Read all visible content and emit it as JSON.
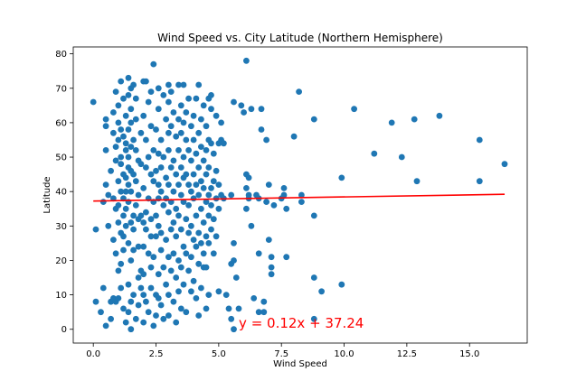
{
  "chart_data": {
    "type": "scatter",
    "title": "Wind Speed vs. City Latitude (Northern Hemisphere)",
    "xlabel": "Wind Speed",
    "ylabel": "Latitude",
    "xlim": [
      -0.8,
      17.3
    ],
    "ylim": [
      -4,
      82
    ],
    "xticks": [
      0.0,
      2.5,
      5.0,
      7.5,
      10.0,
      12.5,
      15.0
    ],
    "xtick_labels": [
      "0.0",
      "2.5",
      "5.0",
      "7.5",
      "10.0",
      "12.5",
      "15.0"
    ],
    "yticks": [
      0,
      10,
      20,
      30,
      40,
      50,
      60,
      70,
      80
    ],
    "ytick_labels": [
      "0",
      "10",
      "20",
      "30",
      "40",
      "50",
      "60",
      "70",
      "80"
    ],
    "grid": false,
    "marker_color": "#1f77b4",
    "regression": {
      "slope": 0.12,
      "intercept": 37.24,
      "x_range": [
        0.0,
        16.4
      ],
      "color": "#ff0000",
      "equation_label": "y = 0.12x + 37.24",
      "label_position": [
        5.8,
        0.5
      ]
    },
    "points": [
      [
        0.0,
        66
      ],
      [
        0.1,
        29
      ],
      [
        0.1,
        8
      ],
      [
        0.3,
        5
      ],
      [
        0.4,
        37
      ],
      [
        0.4,
        12
      ],
      [
        0.5,
        61
      ],
      [
        0.5,
        59
      ],
      [
        0.5,
        52
      ],
      [
        0.5,
        42
      ],
      [
        0.5,
        1
      ],
      [
        0.6,
        39
      ],
      [
        0.6,
        30
      ],
      [
        0.7,
        46
      ],
      [
        0.7,
        8
      ],
      [
        0.7,
        3
      ],
      [
        0.8,
        63
      ],
      [
        0.8,
        57
      ],
      [
        0.8,
        38
      ],
      [
        0.8,
        26
      ],
      [
        0.8,
        9
      ],
      [
        0.9,
        69
      ],
      [
        0.9,
        53
      ],
      [
        0.9,
        49
      ],
      [
        0.9,
        35
      ],
      [
        0.9,
        22
      ],
      [
        0.9,
        8
      ],
      [
        1.0,
        65
      ],
      [
        1.0,
        60
      ],
      [
        1.0,
        55
      ],
      [
        1.0,
        43
      ],
      [
        1.0,
        36
      ],
      [
        1.0,
        31
      ],
      [
        1.0,
        17
      ],
      [
        1.0,
        9
      ],
      [
        1.1,
        72
      ],
      [
        1.1,
        58
      ],
      [
        1.1,
        50
      ],
      [
        1.1,
        48
      ],
      [
        1.1,
        40
      ],
      [
        1.1,
        28
      ],
      [
        1.1,
        19
      ],
      [
        1.1,
        12
      ],
      [
        1.2,
        67
      ],
      [
        1.2,
        56
      ],
      [
        1.2,
        45
      ],
      [
        1.2,
        38
      ],
      [
        1.2,
        33
      ],
      [
        1.2,
        27
      ],
      [
        1.2,
        23
      ],
      [
        1.2,
        6
      ],
      [
        1.3,
        62
      ],
      [
        1.3,
        54
      ],
      [
        1.3,
        52
      ],
      [
        1.3,
        44
      ],
      [
        1.3,
        40
      ],
      [
        1.3,
        35
      ],
      [
        1.3,
        30
      ],
      [
        1.3,
        2
      ],
      [
        1.4,
        73
      ],
      [
        1.4,
        68
      ],
      [
        1.4,
        58
      ],
      [
        1.4,
        50
      ],
      [
        1.4,
        47
      ],
      [
        1.4,
        42
      ],
      [
        1.4,
        37
      ],
      [
        1.4,
        25
      ],
      [
        1.4,
        13
      ],
      [
        1.4,
        5
      ],
      [
        1.5,
        70
      ],
      [
        1.5,
        64
      ],
      [
        1.5,
        60
      ],
      [
        1.5,
        53
      ],
      [
        1.5,
        46
      ],
      [
        1.5,
        40
      ],
      [
        1.5,
        31
      ],
      [
        1.5,
        20
      ],
      [
        1.5,
        8
      ],
      [
        1.5,
        0
      ],
      [
        1.6,
        71
      ],
      [
        1.6,
        55
      ],
      [
        1.6,
        45
      ],
      [
        1.6,
        33
      ],
      [
        1.6,
        29
      ],
      [
        1.6,
        23
      ],
      [
        1.6,
        10
      ],
      [
        1.7,
        67
      ],
      [
        1.7,
        61
      ],
      [
        1.7,
        52
      ],
      [
        1.7,
        43
      ],
      [
        1.7,
        36
      ],
      [
        1.7,
        3
      ],
      [
        1.8,
        49
      ],
      [
        1.8,
        39
      ],
      [
        1.8,
        32
      ],
      [
        1.8,
        24
      ],
      [
        1.8,
        15
      ],
      [
        1.8,
        7
      ],
      [
        1.9,
        57
      ],
      [
        1.9,
        48
      ],
      [
        1.9,
        33
      ],
      [
        1.9,
        17
      ],
      [
        1.9,
        12
      ],
      [
        2.0,
        72
      ],
      [
        2.0,
        62
      ],
      [
        2.0,
        41
      ],
      [
        2.0,
        31
      ],
      [
        2.0,
        24
      ],
      [
        2.0,
        16
      ],
      [
        2.0,
        10
      ],
      [
        2.0,
        2
      ],
      [
        2.1,
        72
      ],
      [
        2.1,
        55
      ],
      [
        2.1,
        47
      ],
      [
        2.1,
        34
      ],
      [
        2.1,
        29
      ],
      [
        2.1,
        8
      ],
      [
        2.2,
        66
      ],
      [
        2.2,
        50
      ],
      [
        2.2,
        38
      ],
      [
        2.2,
        22
      ],
      [
        2.2,
        5
      ],
      [
        2.3,
        69
      ],
      [
        2.3,
        59
      ],
      [
        2.3,
        45
      ],
      [
        2.3,
        32
      ],
      [
        2.3,
        27
      ],
      [
        2.3,
        18
      ],
      [
        2.3,
        12
      ],
      [
        2.4,
        77
      ],
      [
        2.4,
        52
      ],
      [
        2.4,
        43
      ],
      [
        2.4,
        37
      ],
      [
        2.4,
        21
      ],
      [
        2.4,
        1
      ],
      [
        2.5,
        58
      ],
      [
        2.5,
        46
      ],
      [
        2.5,
        33
      ],
      [
        2.5,
        27
      ],
      [
        2.5,
        10
      ],
      [
        2.5,
        4
      ],
      [
        2.6,
        70
      ],
      [
        2.6,
        64
      ],
      [
        2.6,
        51
      ],
      [
        2.6,
        42
      ],
      [
        2.6,
        38
      ],
      [
        2.6,
        30
      ],
      [
        2.6,
        16
      ],
      [
        2.6,
        9
      ],
      [
        2.7,
        55
      ],
      [
        2.7,
        47
      ],
      [
        2.7,
        40
      ],
      [
        2.7,
        28
      ],
      [
        2.7,
        23
      ],
      [
        2.7,
        7
      ],
      [
        2.8,
        68
      ],
      [
        2.8,
        50
      ],
      [
        2.8,
        36
      ],
      [
        2.8,
        18
      ],
      [
        2.8,
        3
      ],
      [
        2.9,
        61
      ],
      [
        2.9,
        44
      ],
      [
        2.9,
        38
      ],
      [
        2.9,
        26
      ],
      [
        2.9,
        13
      ],
      [
        3.0,
        71
      ],
      [
        3.0,
        66
      ],
      [
        3.0,
        57
      ],
      [
        3.0,
        52
      ],
      [
        3.0,
        42
      ],
      [
        3.0,
        34
      ],
      [
        3.0,
        21
      ],
      [
        3.0,
        10
      ],
      [
        3.0,
        4
      ],
      [
        3.1,
        69
      ],
      [
        3.1,
        59
      ],
      [
        3.1,
        47
      ],
      [
        3.1,
        37
      ],
      [
        3.1,
        29
      ],
      [
        3.1,
        17
      ],
      [
        3.2,
        63
      ],
      [
        3.2,
        49
      ],
      [
        3.2,
        40
      ],
      [
        3.2,
        31
      ],
      [
        3.2,
        22
      ],
      [
        3.2,
        8
      ],
      [
        3.3,
        56
      ],
      [
        3.3,
        45
      ],
      [
        3.3,
        35
      ],
      [
        3.3,
        27
      ],
      [
        3.3,
        15
      ],
      [
        3.3,
        2
      ],
      [
        3.4,
        71
      ],
      [
        3.4,
        61
      ],
      [
        3.4,
        52
      ],
      [
        3.4,
        42
      ],
      [
        3.4,
        33
      ],
      [
        3.4,
        20
      ],
      [
        3.4,
        11
      ],
      [
        3.5,
        65
      ],
      [
        3.5,
        57
      ],
      [
        3.5,
        47
      ],
      [
        3.5,
        39
      ],
      [
        3.5,
        29
      ],
      [
        3.5,
        18
      ],
      [
        3.5,
        6
      ],
      [
        3.6,
        71
      ],
      [
        3.6,
        60
      ],
      [
        3.6,
        50
      ],
      [
        3.6,
        44
      ],
      [
        3.6,
        37
      ],
      [
        3.6,
        24
      ],
      [
        3.6,
        13
      ],
      [
        3.7,
        63
      ],
      [
        3.7,
        55
      ],
      [
        3.7,
        45
      ],
      [
        3.7,
        32
      ],
      [
        3.7,
        22
      ],
      [
        3.7,
        5
      ],
      [
        3.8,
        67
      ],
      [
        3.8,
        52
      ],
      [
        3.8,
        42
      ],
      [
        3.8,
        36
      ],
      [
        3.8,
        28
      ],
      [
        3.8,
        17
      ],
      [
        3.9,
        59
      ],
      [
        3.9,
        49
      ],
      [
        3.9,
        40
      ],
      [
        3.9,
        30
      ],
      [
        3.9,
        21
      ],
      [
        3.9,
        11
      ],
      [
        4.0,
        62
      ],
      [
        4.0,
        55
      ],
      [
        4.0,
        45
      ],
      [
        4.0,
        38
      ],
      [
        4.0,
        26
      ],
      [
        4.0,
        14
      ],
      [
        4.1,
        67
      ],
      [
        4.1,
        51
      ],
      [
        4.1,
        42
      ],
      [
        4.1,
        33
      ],
      [
        4.1,
        24
      ],
      [
        4.1,
        9
      ],
      [
        4.2,
        71
      ],
      [
        4.2,
        57
      ],
      [
        4.2,
        47
      ],
      [
        4.2,
        39
      ],
      [
        4.2,
        28
      ],
      [
        4.2,
        19
      ],
      [
        4.2,
        4
      ],
      [
        4.3,
        61
      ],
      [
        4.3,
        53
      ],
      [
        4.3,
        43
      ],
      [
        4.3,
        35
      ],
      [
        4.3,
        25
      ],
      [
        4.3,
        12
      ],
      [
        4.4,
        65
      ],
      [
        4.4,
        49
      ],
      [
        4.4,
        41
      ],
      [
        4.4,
        31
      ],
      [
        4.4,
        22
      ],
      [
        4.4,
        18
      ],
      [
        4.5,
        59
      ],
      [
        4.5,
        52
      ],
      [
        4.5,
        45
      ],
      [
        4.5,
        37
      ],
      [
        4.5,
        27
      ],
      [
        4.5,
        18
      ],
      [
        4.5,
        6
      ],
      [
        4.6,
        67
      ],
      [
        4.6,
        55
      ],
      [
        4.6,
        47
      ],
      [
        4.6,
        39
      ],
      [
        4.6,
        33
      ],
      [
        4.6,
        25
      ],
      [
        4.6,
        10
      ],
      [
        4.7,
        68
      ],
      [
        4.7,
        64
      ],
      [
        4.7,
        54
      ],
      [
        4.7,
        41
      ],
      [
        4.7,
        36
      ],
      [
        4.7,
        29
      ],
      [
        4.8,
        51
      ],
      [
        4.8,
        43
      ],
      [
        4.8,
        32
      ],
      [
        4.8,
        22
      ],
      [
        4.9,
        62
      ],
      [
        4.9,
        46
      ],
      [
        4.9,
        38
      ],
      [
        4.9,
        27
      ],
      [
        5.0,
        54
      ],
      [
        5.0,
        42
      ],
      [
        5.0,
        35
      ],
      [
        5.0,
        11
      ],
      [
        5.1,
        60
      ],
      [
        5.1,
        55
      ],
      [
        5.1,
        39
      ],
      [
        5.2,
        54
      ],
      [
        5.2,
        38
      ],
      [
        5.3,
        10
      ],
      [
        5.4,
        6
      ],
      [
        5.5,
        39
      ],
      [
        5.5,
        19
      ],
      [
        5.5,
        3
      ],
      [
        5.6,
        66
      ],
      [
        5.6,
        25
      ],
      [
        5.6,
        20
      ],
      [
        5.6,
        0
      ],
      [
        5.7,
        15
      ],
      [
        5.8,
        6
      ],
      [
        5.9,
        65
      ],
      [
        6.0,
        63
      ],
      [
        6.1,
        78
      ],
      [
        6.1,
        45
      ],
      [
        6.1,
        41
      ],
      [
        6.1,
        35
      ],
      [
        6.2,
        44
      ],
      [
        6.2,
        39
      ],
      [
        6.2,
        38
      ],
      [
        6.3,
        64
      ],
      [
        6.3,
        30
      ],
      [
        6.4,
        9
      ],
      [
        6.5,
        39
      ],
      [
        6.6,
        38
      ],
      [
        6.6,
        22
      ],
      [
        6.6,
        5
      ],
      [
        6.7,
        64
      ],
      [
        6.7,
        58
      ],
      [
        6.8,
        5
      ],
      [
        6.8,
        8
      ],
      [
        6.9,
        55
      ],
      [
        6.9,
        37
      ],
      [
        7.0,
        42
      ],
      [
        7.0,
        26
      ],
      [
        7.1,
        18
      ],
      [
        7.1,
        21
      ],
      [
        7.1,
        16
      ],
      [
        7.2,
        36
      ],
      [
        7.5,
        38
      ],
      [
        7.6,
        41
      ],
      [
        7.6,
        39
      ],
      [
        7.7,
        21
      ],
      [
        7.7,
        35
      ],
      [
        8.0,
        56
      ],
      [
        8.2,
        69
      ],
      [
        8.3,
        39
      ],
      [
        8.3,
        37
      ],
      [
        8.8,
        61
      ],
      [
        8.8,
        33
      ],
      [
        8.8,
        15
      ],
      [
        8.8,
        3
      ],
      [
        9.1,
        11
      ],
      [
        9.9,
        44
      ],
      [
        9.9,
        13
      ],
      [
        10.4,
        64
      ],
      [
        11.2,
        51
      ],
      [
        11.9,
        60
      ],
      [
        12.3,
        50
      ],
      [
        12.8,
        61
      ],
      [
        12.9,
        43
      ],
      [
        13.8,
        62
      ],
      [
        15.4,
        55
      ],
      [
        15.4,
        43
      ],
      [
        16.4,
        48
      ]
    ]
  }
}
